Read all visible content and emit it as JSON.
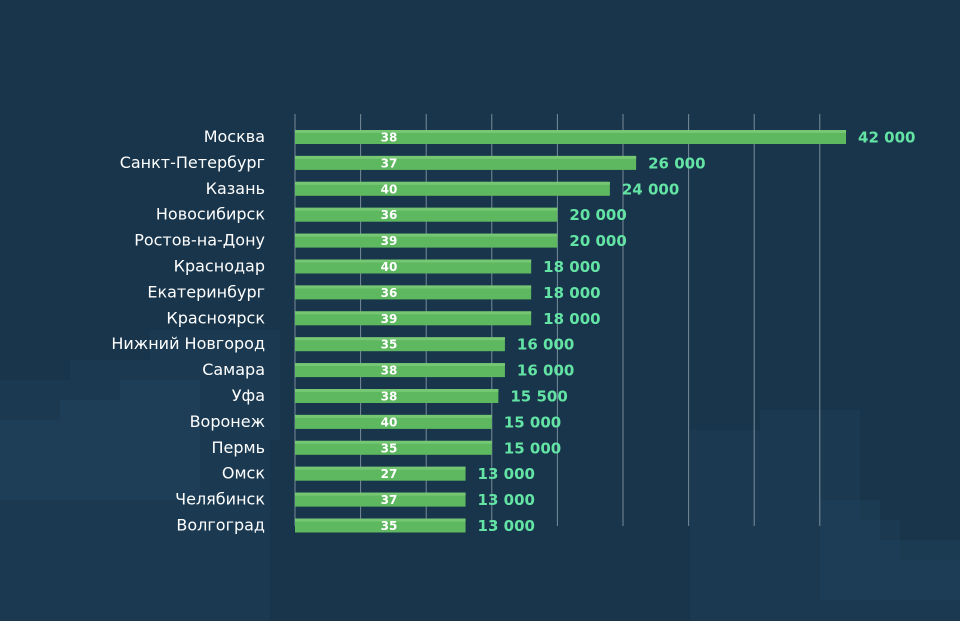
{
  "chart_data": {
    "type": "bar",
    "orientation": "horizontal",
    "categories": [
      "Москва",
      "Санкт-Петербург",
      "Казань",
      "Новосибирск",
      "Ростов-на-Дону",
      "Краснодар",
      "Екатеринбург",
      "Красноярск",
      "Нижний Новгород",
      "Самара",
      "Уфа",
      "Воронеж",
      "Пермь",
      "Омск",
      "Челябинск",
      "Волгоград"
    ],
    "series": [
      {
        "values": [
          42000,
          26000,
          24000,
          20000,
          20000,
          18000,
          18000,
          18000,
          16000,
          16000,
          15500,
          15000,
          15000,
          13000,
          13000,
          13000
        ],
        "value_labels": [
          "42 000",
          "26 000",
          "24 000",
          "20 000",
          "20 000",
          "18 000",
          "18 000",
          "18 000",
          "16 000",
          "16 000",
          "15 500",
          "15 000",
          "15 000",
          "13 000",
          "13 000",
          "13 000"
        ]
      }
    ],
    "inner_labels": [
      "38",
      "37",
      "40",
      "36",
      "39",
      "40",
      "36",
      "39",
      "35",
      "38",
      "38",
      "40",
      "35",
      "27",
      "37",
      "35"
    ],
    "xlim": [
      0,
      40000
    ],
    "grid_step": 5000,
    "grid": true,
    "colors": {
      "background": "#18354b",
      "bar": "#5db85f",
      "bar_highlight": "#7ccb78",
      "value_label": "#63e3a4",
      "category_label": "#ffffff",
      "grid": "#c8d3dc"
    }
  }
}
